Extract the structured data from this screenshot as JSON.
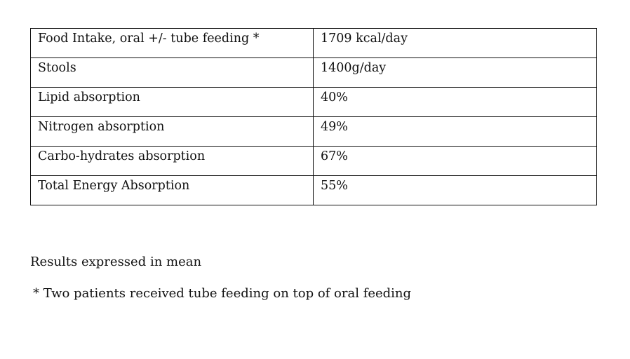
{
  "table": {
    "rows": [
      {
        "label": "Food Intake, oral +/- tube feeding *",
        "value": "1709 kcal/day"
      },
      {
        "label": "Stools",
        "value": "1400g/day"
      },
      {
        "label": "Lipid absorption",
        "value": "40%"
      },
      {
        "label": "Nitrogen absorption",
        "value": "49%"
      },
      {
        "label": "Carbo-hydrates absorption",
        "value": "67%"
      },
      {
        "label": "Total Energy Absorption",
        "value": "55%"
      }
    ]
  },
  "notes": {
    "summary": "Results expressed in mean",
    "footnote": "* Two patients received tube feeding on top of oral feeding"
  }
}
